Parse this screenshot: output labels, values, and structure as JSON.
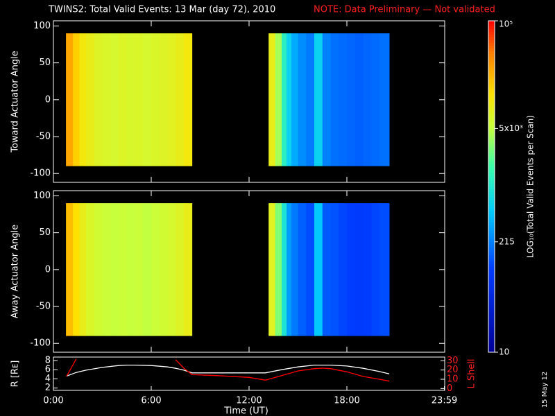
{
  "title": "TWINS2: Total Valid Events: 13 Mar (day  72), 2010",
  "note": "NOTE: Data Preliminary — Not validated",
  "date_stamp": "15 May 12",
  "chart_data": [
    {
      "type": "heatmap",
      "ylabel": "Toward Actuator Angle",
      "xbins": [
        0.77,
        1.2,
        1.6,
        2.0,
        2.5,
        3.0,
        3.5,
        4.0,
        4.5,
        5.0,
        5.5,
        6.0,
        6.5,
        7.0,
        7.5,
        8.0,
        8.5,
        13.2,
        13.6,
        14.0,
        14.3,
        14.6,
        15.0,
        15.5,
        16.0,
        16.5,
        17.0,
        17.5,
        18.0,
        18.5,
        19.0,
        19.5,
        20.0,
        20.6
      ],
      "ybins": [
        -90,
        90
      ],
      "values": [
        26000,
        16000,
        11000,
        9000,
        7500,
        7000,
        6500,
        7200,
        6800,
        7000,
        6500,
        7000,
        7500,
        8000,
        9000,
        11000,
        null,
        9000,
        4000,
        1200,
        600,
        350,
        250,
        200,
        600,
        220,
        180,
        170,
        160,
        150,
        160,
        170,
        180
      ],
      "xlim": [
        0,
        24
      ],
      "xticks": [
        0,
        6,
        12,
        18,
        24
      ],
      "ylim": [
        -112,
        107
      ],
      "yticks": [
        -100,
        -50,
        0,
        50,
        100
      ]
    },
    {
      "type": "heatmap",
      "ylabel": "Away Actuator Angle",
      "xbins": [
        0.77,
        1.2,
        1.6,
        2.0,
        2.5,
        3.0,
        3.5,
        4.0,
        4.5,
        5.0,
        5.5,
        6.0,
        6.5,
        7.0,
        7.5,
        8.0,
        8.5,
        13.2,
        13.6,
        14.0,
        14.3,
        14.6,
        15.0,
        15.5,
        16.0,
        16.5,
        17.0,
        17.5,
        18.0,
        18.5,
        19.0,
        19.5,
        20.0,
        20.6
      ],
      "ybins": [
        -90,
        90
      ],
      "values": [
        20000,
        13000,
        9000,
        7000,
        6000,
        5500,
        5200,
        5500,
        5200,
        5400,
        5000,
        5500,
        6000,
        6500,
        7500,
        9000,
        null,
        8000,
        3000,
        900,
        300,
        200,
        150,
        120,
        500,
        140,
        130,
        110,
        100,
        95,
        100,
        110,
        120
      ],
      "xlim": [
        0,
        24
      ],
      "xticks": [
        0,
        6,
        12,
        18,
        24
      ],
      "ylim": [
        -112,
        107
      ],
      "yticks": [
        -100,
        -50,
        0,
        50,
        100
      ]
    },
    {
      "type": "line",
      "xlabel": "Time (UT)",
      "ylabel": "R [Rᴇ]",
      "y2label": "L Shell",
      "x": [
        0.8,
        1.4,
        2,
        3,
        4,
        4.5,
        5,
        6,
        7,
        7.5,
        8,
        8.5,
        10,
        12,
        13,
        14,
        15,
        16,
        16.5,
        17,
        18,
        19,
        20,
        20.6
      ],
      "series": [
        {
          "color": "#ffffff",
          "values": [
            4.6,
            5.4,
            5.9,
            6.5,
            6.9,
            7.0,
            7.0,
            6.9,
            6.6,
            6.3,
            5.9,
            5.3,
            5.3,
            5.3,
            5.3,
            6.0,
            6.6,
            7.0,
            7.0,
            7.0,
            6.8,
            6.3,
            5.6,
            5.1
          ]
        },
        {
          "color": "#ff0000",
          "axis": "y2",
          "values": [
            13,
            32,
            null,
            null,
            null,
            null,
            null,
            null,
            null,
            31,
            22,
            15,
            14,
            12,
            9,
            14,
            19,
            21.5,
            22,
            21.5,
            18,
            13,
            10,
            8
          ]
        }
      ],
      "xlim": [
        0,
        24
      ],
      "xticks": [
        {
          "value": 0,
          "label": "0:00"
        },
        {
          "value": 6,
          "label": "6:00"
        },
        {
          "value": 12,
          "label": "12:00"
        },
        {
          "value": 18,
          "label": "18:00"
        },
        {
          "value": 23.98,
          "label": "23:59"
        }
      ],
      "ylim": [
        1.5,
        8.75
      ],
      "yticks": [
        2,
        4,
        6,
        8
      ],
      "y2lim": [
        -2,
        34
      ],
      "y2ticks": [
        0,
        10,
        20,
        30
      ]
    },
    {
      "type": "colorbar",
      "label": "LOG₁₀(Total Valid Events per Scan)",
      "log": true,
      "ylim": [
        10,
        100000
      ],
      "yticks": [
        {
          "value": 10,
          "label": "10"
        },
        {
          "value": 215,
          "label": "215"
        },
        {
          "value": 5000,
          "label": "5x10³"
        },
        {
          "value": 100000,
          "label": "10⁵"
        }
      ]
    }
  ]
}
